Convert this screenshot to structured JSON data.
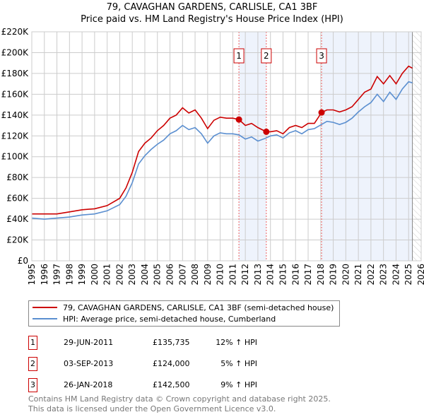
{
  "title_line1": "79, CAVAGHAN GARDENS, CARLISLE, CA1 3BF",
  "title_line2": "Price paid vs. HM Land Registry's House Price Index (HPI)",
  "legend": {
    "property": "79, CAVAGHAN GARDENS, CARLISLE, CA1 3BF (semi-detached house)",
    "hpi": "HPI: Average price, semi-detached house, Cumberland"
  },
  "sales": [
    {
      "num": "1",
      "date": "29-JUN-2011",
      "price": "£135,735",
      "delta": "12% ↑ HPI"
    },
    {
      "num": "2",
      "date": "03-SEP-2013",
      "price": "£124,000",
      "delta": "5% ↑ HPI"
    },
    {
      "num": "3",
      "date": "26-JAN-2018",
      "price": "£142,500",
      "delta": "9% ↑ HPI"
    }
  ],
  "footer_line1": "Contains HM Land Registry data © Crown copyright and database right 2025.",
  "footer_line2": "This data is licensed under the Open Government Licence v3.0.",
  "colors": {
    "property": "#cc0000",
    "hpi": "#5b8fd0",
    "shade": "#eef3fc"
  },
  "chart_data": {
    "type": "line",
    "xlim": [
      1995,
      2026
    ],
    "ylim": [
      0,
      220000
    ],
    "yticks": [
      0,
      20000,
      40000,
      60000,
      80000,
      100000,
      120000,
      140000,
      160000,
      180000,
      200000,
      220000
    ],
    "ytick_labels": [
      "£0",
      "£20K",
      "£40K",
      "£60K",
      "£80K",
      "£100K",
      "£120K",
      "£140K",
      "£160K",
      "£180K",
      "£200K",
      "£220K"
    ],
    "xticks": [
      1995,
      1996,
      1997,
      1998,
      1999,
      2000,
      2001,
      2002,
      2003,
      2004,
      2005,
      2006,
      2007,
      2008,
      2009,
      2010,
      2011,
      2012,
      2013,
      2014,
      2015,
      2016,
      2017,
      2018,
      2019,
      2020,
      2021,
      2022,
      2023,
      2024,
      2025,
      2026
    ],
    "grid": true,
    "sale_x": [
      2011.49,
      2013.67,
      2018.07
    ],
    "sale_y": [
      135735,
      124000,
      142500
    ],
    "data_end": 2025.3,
    "x": [
      1995,
      1996,
      1997,
      1998,
      1999,
      2000,
      2001,
      2002,
      2002.5,
      2003,
      2003.5,
      2004,
      2004.5,
      2005,
      2005.5,
      2006,
      2006.5,
      2007,
      2007.5,
      2008,
      2008.5,
      2009,
      2009.5,
      2010,
      2010.5,
      2011,
      2011.49,
      2012,
      2012.5,
      2013,
      2013.67,
      2014,
      2014.5,
      2015,
      2015.5,
      2016,
      2016.5,
      2017,
      2017.5,
      2018.07,
      2018.5,
      2019,
      2019.5,
      2020,
      2020.5,
      2021,
      2021.5,
      2022,
      2022.5,
      2023,
      2023.5,
      2024,
      2024.5,
      2025,
      2025.3
    ],
    "series": [
      {
        "name": "79, CAVAGHAN GARDENS, CARLISLE, CA1 3BF (semi-detached house)",
        "values": [
          45000,
          45000,
          45000,
          47000,
          49000,
          50000,
          53000,
          60000,
          70000,
          85000,
          105000,
          113000,
          118000,
          125000,
          130000,
          137000,
          140000,
          147000,
          142000,
          145000,
          137000,
          127000,
          135000,
          138000,
          137000,
          137000,
          135735,
          130000,
          132000,
          128000,
          124000,
          124000,
          125000,
          122000,
          128000,
          130000,
          128000,
          132000,
          132000,
          142500,
          145000,
          145000,
          143000,
          145000,
          148000,
          155000,
          162000,
          165000,
          177000,
          170000,
          178000,
          170000,
          180000,
          187000,
          185000
        ]
      },
      {
        "name": "HPI: Average price, semi-detached house, Cumberland",
        "values": [
          41000,
          40000,
          41000,
          42000,
          44000,
          45000,
          48000,
          54000,
          62000,
          75000,
          93000,
          101000,
          107000,
          112000,
          116000,
          122000,
          125000,
          130000,
          126000,
          128000,
          122000,
          113000,
          120000,
          123000,
          122000,
          122000,
          121000,
          117000,
          119000,
          115000,
          118000,
          120000,
          121000,
          118000,
          123000,
          125000,
          122000,
          126000,
          127000,
          131000,
          134000,
          133000,
          131000,
          133000,
          137000,
          143000,
          148000,
          152000,
          160000,
          153000,
          162000,
          155000,
          165000,
          172000,
          171000
        ]
      }
    ]
  }
}
